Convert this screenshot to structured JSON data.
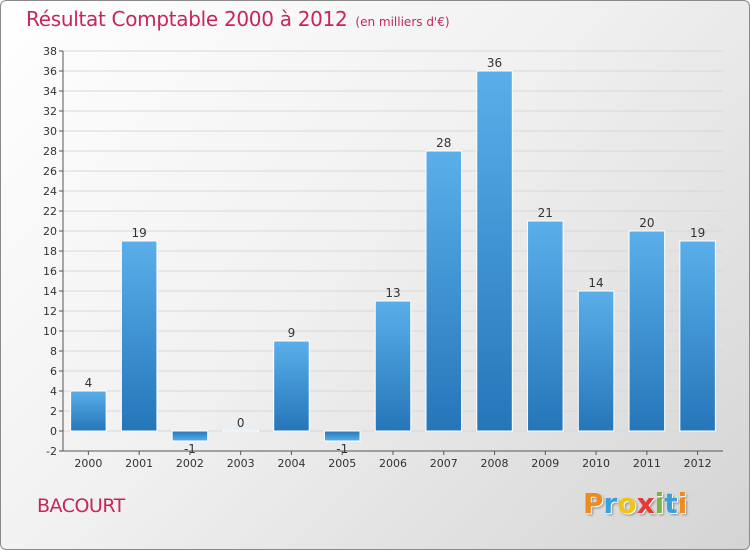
{
  "header": {
    "title": "Résultat Comptable 2000 à 2012",
    "subtitle": "(en milliers d'€)"
  },
  "commune": "BACOURT",
  "logo": {
    "text": "Proxiti",
    "letters": [
      {
        "char": "P",
        "color": "#f08a1c"
      },
      {
        "char": "r",
        "color": "#3aa0d8"
      },
      {
        "char": "o",
        "color": "#f0c419"
      },
      {
        "char": "x",
        "color": "#e53935"
      },
      {
        "char": "i",
        "color": "#7cb342"
      },
      {
        "char": "t",
        "color": "#3aa0d8"
      },
      {
        "char": "i",
        "color": "#f08a1c"
      }
    ]
  },
  "colors": {
    "bar_light": "#5aafea",
    "bar_dark": "#2576b9",
    "title": "#c8245f",
    "grid": "#d8d8d8"
  },
  "chart_data": {
    "type": "bar",
    "title": "Résultat Comptable 2000 à 2012",
    "subtitle": "(en milliers d'€)",
    "xlabel": "",
    "ylabel": "",
    "categories": [
      "2000",
      "2001",
      "2002",
      "2003",
      "2004",
      "2005",
      "2006",
      "2007",
      "2008",
      "2009",
      "2010",
      "2011",
      "2012"
    ],
    "values": [
      4,
      19,
      -1,
      0,
      9,
      -1,
      13,
      28,
      36,
      21,
      14,
      20,
      19
    ],
    "ylim": [
      -2,
      38
    ],
    "ytick_step": 2,
    "grid": "horizontal",
    "legend": "none"
  }
}
